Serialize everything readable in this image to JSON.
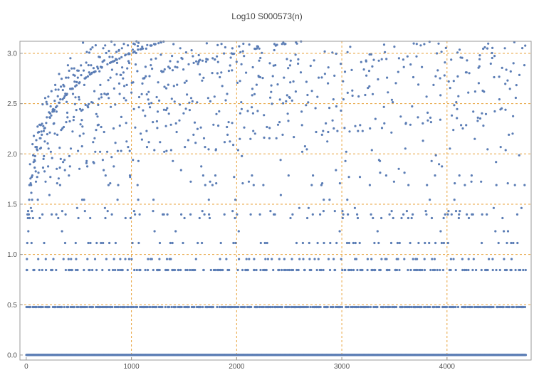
{
  "chart_data": {
    "type": "scatter",
    "title": "Log10 S000573(n)",
    "xlabel": "",
    "ylabel": "",
    "xlim": [
      -60,
      4800
    ],
    "ylim": [
      -0.05,
      3.12
    ],
    "grid": true,
    "x_ticks": [
      0,
      1000,
      2000,
      3000,
      4000
    ],
    "x_tick_labels": [
      "0",
      "1000",
      "2000",
      "3000",
      "4000"
    ],
    "y_ticks": [
      0.0,
      0.5,
      1.0,
      1.5,
      2.0,
      2.5,
      3.0
    ],
    "y_tick_labels": [
      "0.0",
      "0.5",
      "1.0",
      "1.5",
      "2.0",
      "2.5",
      "3.0"
    ],
    "n_max": 4750,
    "x_sample": [
      0,
      100,
      200,
      500,
      1000,
      2000,
      3000,
      4000,
      4750
    ],
    "series": [
      {
        "name": "",
        "values": [
          0.3,
          1.38,
          1.73,
          2.07,
          2.4,
          2.67,
          2.83,
          2.94,
          3.0
        ]
      }
    ],
    "colors": {
      "points": "#5b7db5",
      "grid": "#e8a33d",
      "axis": "#999999"
    }
  }
}
